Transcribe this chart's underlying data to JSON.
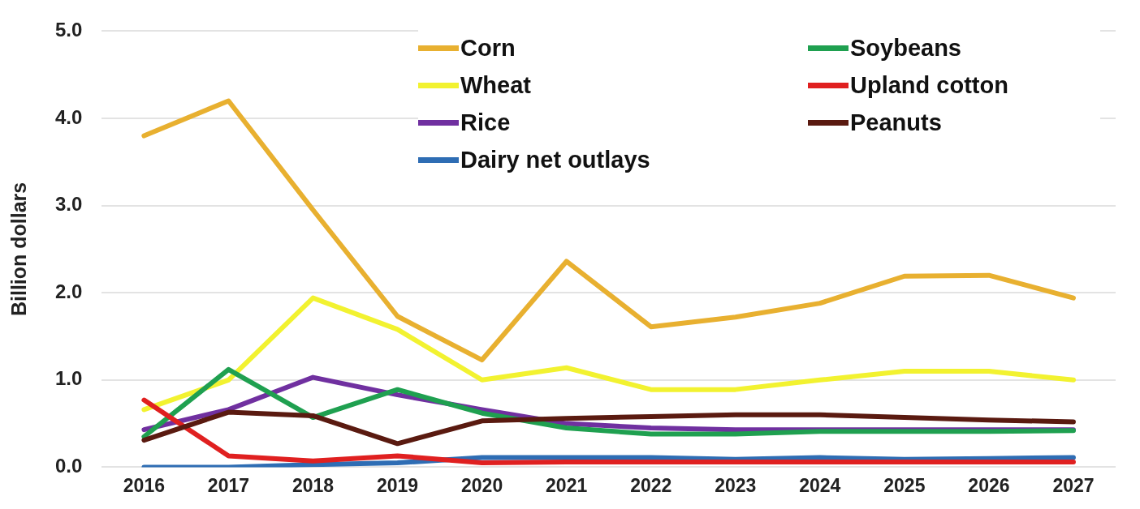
{
  "chart_data": {
    "type": "line",
    "ylabel": "Billion dollars",
    "categories": [
      "2016",
      "2017",
      "2018",
      "2019",
      "2020",
      "2021",
      "2022",
      "2023",
      "2024",
      "2025",
      "2026",
      "2027"
    ],
    "ylim": [
      0,
      5
    ],
    "yticks": [
      {
        "value": 0,
        "label": "0.0"
      },
      {
        "value": 1,
        "label": "1.0"
      },
      {
        "value": 2,
        "label": "2.0"
      },
      {
        "value": 3,
        "label": "3.0"
      },
      {
        "value": 4,
        "label": "4.0"
      },
      {
        "value": 5,
        "label": "5.0"
      }
    ],
    "grid": "y",
    "legend": "top",
    "marker": "none",
    "line_style": "solid",
    "series": [
      {
        "name": "Corn",
        "color": "#e8b030",
        "values": [
          3.8,
          4.2,
          2.95,
          1.73,
          1.23,
          2.36,
          1.61,
          1.72,
          1.88,
          2.19,
          2.2,
          1.94
        ]
      },
      {
        "name": "Wheat",
        "color": "#f2f230",
        "values": [
          0.66,
          1.0,
          1.94,
          1.58,
          1.0,
          1.14,
          0.89,
          0.89,
          1.0,
          1.1,
          1.1,
          1.0
        ]
      },
      {
        "name": "Rice",
        "color": "#7030a0",
        "values": [
          0.43,
          0.66,
          1.03,
          0.83,
          0.66,
          0.5,
          0.45,
          0.43,
          0.43,
          0.43,
          0.43,
          0.43
        ]
      },
      {
        "name": "Dairy net outlays",
        "color": "#2e6db4",
        "values": [
          0.0,
          0.0,
          0.03,
          0.05,
          0.11,
          0.11,
          0.11,
          0.09,
          0.11,
          0.09,
          0.1,
          0.11
        ]
      },
      {
        "name": "Soybeans",
        "color": "#1fa050",
        "values": [
          0.35,
          1.12,
          0.57,
          0.89,
          0.62,
          0.45,
          0.38,
          0.38,
          0.41,
          0.41,
          0.41,
          0.42
        ]
      },
      {
        "name": "Upland cotton",
        "color": "#e02020",
        "values": [
          0.77,
          0.13,
          0.07,
          0.13,
          0.05,
          0.06,
          0.06,
          0.06,
          0.06,
          0.06,
          0.06,
          0.06
        ]
      },
      {
        "name": "Peanuts",
        "color": "#5a1a10",
        "values": [
          0.31,
          0.63,
          0.59,
          0.27,
          0.53,
          0.56,
          0.58,
          0.6,
          0.6,
          0.57,
          0.54,
          0.52
        ]
      }
    ]
  }
}
